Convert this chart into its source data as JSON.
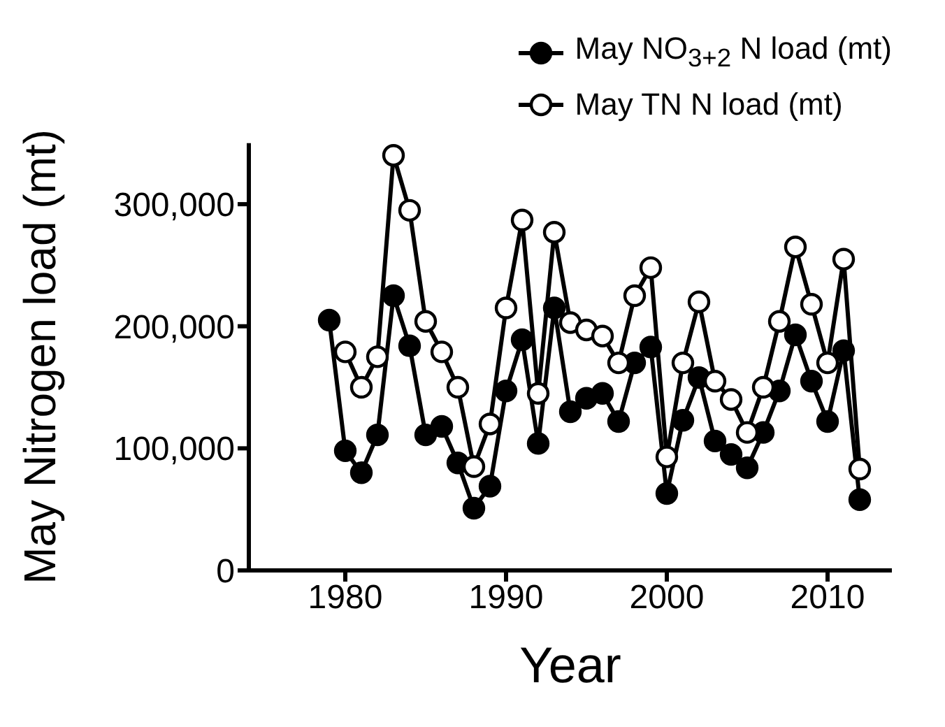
{
  "chart_data": {
    "type": "line",
    "xlabel": "Year",
    "ylabel": "May Nitrogen load (mt)",
    "xlim": [
      1974,
      2014
    ],
    "xticks": [
      1980,
      1990,
      2000,
      2010
    ],
    "ylim": [
      0,
      350000
    ],
    "yticks": [
      0,
      {
        "value": 100000,
        "label": "100,000"
      },
      {
        "value": 200000,
        "label": "200,000"
      },
      {
        "value": 300000,
        "label": "300,000"
      }
    ],
    "grid": false,
    "legend": "top right",
    "marker": "circle",
    "line_style": "solid",
    "series": [
      {
        "name": "May NO$_{3+2}$ N load (mt)",
        "color": "#000000",
        "x": [
          1979,
          1980,
          1981,
          1982,
          1983,
          1984,
          1985,
          1986,
          1987,
          1988,
          1989,
          1990,
          1991,
          1992,
          1993,
          1994,
          1995,
          1996,
          1997,
          1998,
          1999,
          2000,
          2001,
          2002,
          2003,
          2004,
          2005,
          2006,
          2007,
          2008,
          2009,
          2010,
          2011,
          2012
        ],
        "values": [
          205000,
          98000,
          80000,
          111000,
          225000,
          184000,
          111000,
          118000,
          88000,
          51000,
          69000,
          147000,
          189000,
          104000,
          215000,
          130000,
          141000,
          145000,
          122000,
          170000,
          183000,
          63000,
          123000,
          158000,
          106000,
          95000,
          84000,
          113000,
          147000,
          193000,
          155000,
          122000,
          180000,
          58000
        ]
      },
      {
        "name": "May TN N load (mt)",
        "color": "#000000",
        "x": [
          1980,
          1981,
          1982,
          1983,
          1984,
          1985,
          1986,
          1987,
          1988,
          1989,
          1990,
          1991,
          1992,
          1993,
          1994,
          1995,
          1996,
          1997,
          1998,
          1999,
          2000,
          2001,
          2002,
          2003,
          2004,
          2005,
          2006,
          2007,
          2008,
          2009,
          2010,
          2011,
          2012
        ],
        "values": [
          179000,
          150000,
          175000,
          340000,
          295000,
          204000,
          179000,
          150000,
          85000,
          120000,
          215000,
          287000,
          145000,
          277000,
          203000,
          197000,
          192000,
          170000,
          225000,
          248000,
          93000,
          170000,
          220000,
          155000,
          140000,
          113000,
          150000,
          204000,
          265000,
          218000,
          170000,
          255000,
          83000
        ]
      }
    ]
  }
}
